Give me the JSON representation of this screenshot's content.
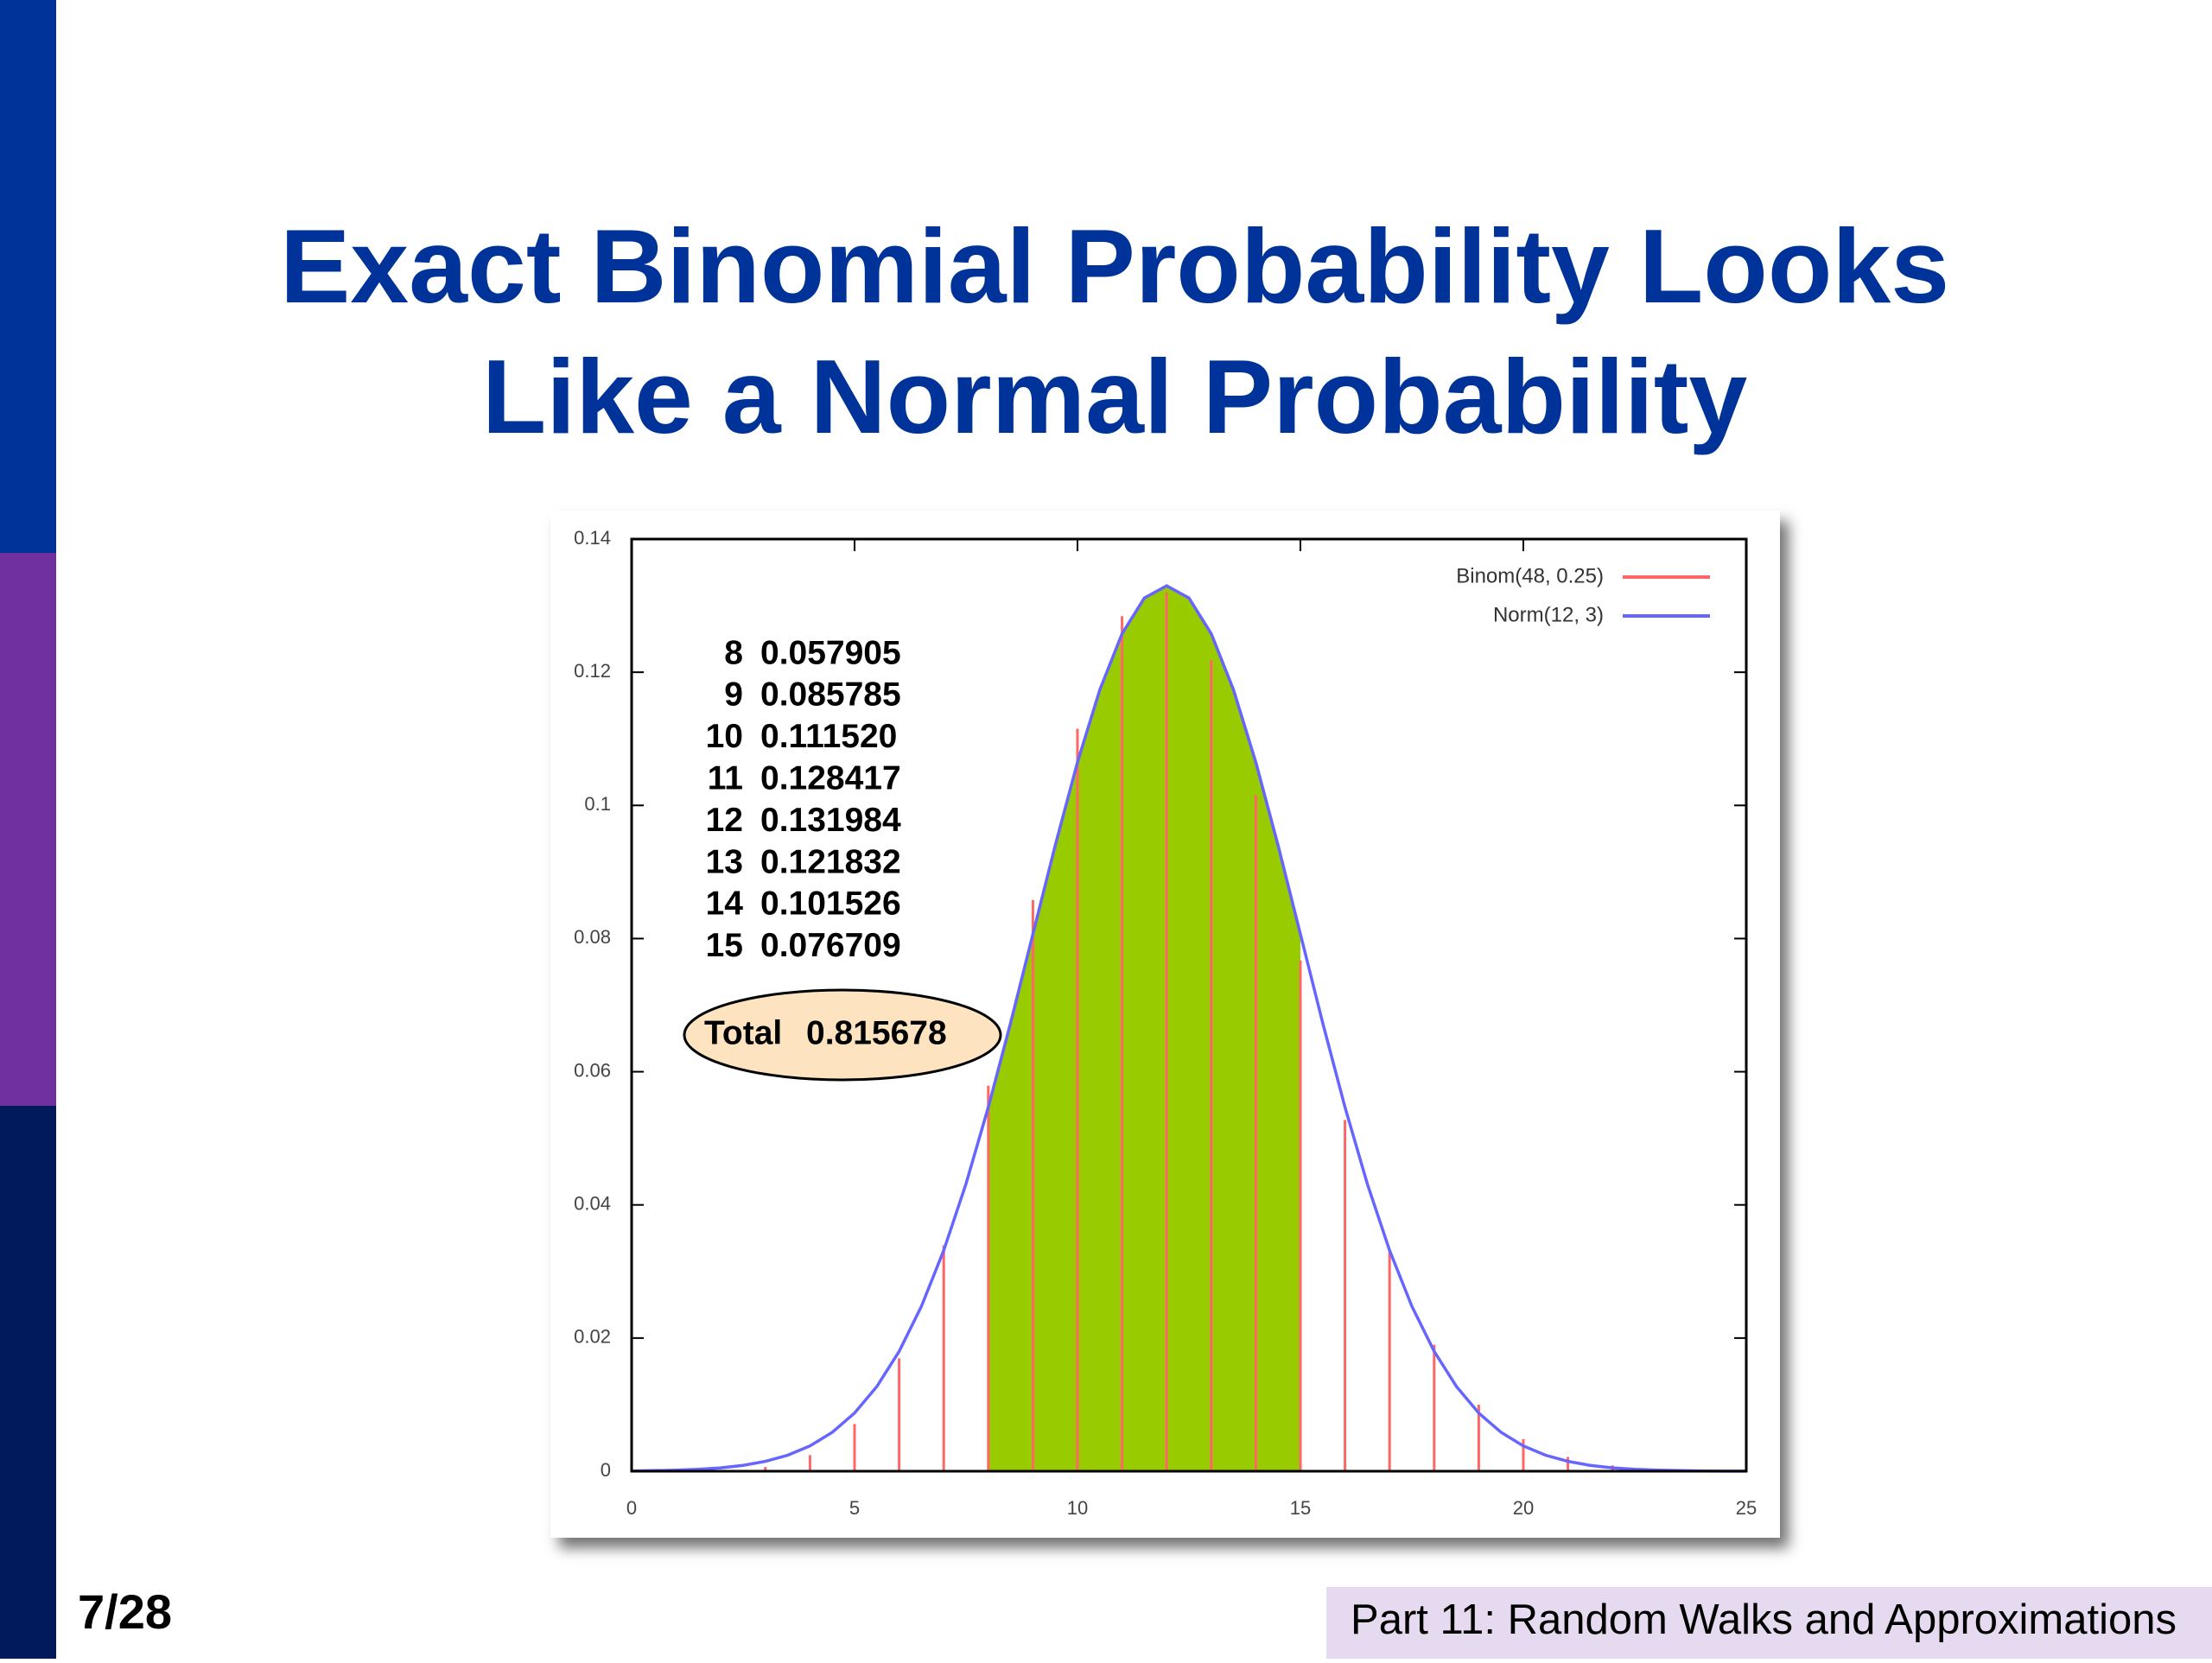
{
  "slide": {
    "page": "7/28",
    "footer": "Part 11: Random Walks and Approximations"
  },
  "chart_data": {
    "type": "stem-curve",
    "title": [
      "Exact Binomial Probability Looks",
      "Like a Normal Probability"
    ],
    "xlim": [
      0,
      25
    ],
    "xticks": [
      0,
      5,
      10,
      15,
      20,
      25
    ],
    "ylim": [
      0,
      0.14
    ],
    "yticks": [
      0,
      0.02,
      0.04,
      0.06,
      0.08,
      0.1,
      0.12,
      0.14
    ],
    "legend": "top-right",
    "shade_range": [
      8,
      15
    ],
    "shade_color": "#99cc00",
    "series": [
      {
        "name": "Binom(48, 0.25)",
        "color": "#ff6666",
        "kind": "stem",
        "x": [
          0,
          1,
          2,
          3,
          4,
          5,
          6,
          7,
          8,
          9,
          10,
          11,
          12,
          13,
          14,
          15,
          16,
          17,
          18,
          19,
          20,
          21,
          22,
          23,
          24,
          25
        ],
        "values": [
          1e-06,
          1.6e-05,
          0.000126,
          0.000645,
          0.002419,
          0.007095,
          0.016948,
          0.033896,
          0.057905,
          0.085785,
          0.11152,
          0.128417,
          0.131984,
          0.121832,
          0.101526,
          0.076709,
          0.052737,
          0.03309,
          0.018996,
          0.009998,
          0.004832,
          0.002148,
          0.000879,
          0.000331,
          0.000115,
          3.7e-05
        ]
      },
      {
        "name": "Norm(12, 3)",
        "color": "#6666ff",
        "kind": "line",
        "x": [
          0,
          0.5,
          1,
          1.5,
          2,
          2.5,
          3,
          3.5,
          4,
          4.5,
          5,
          5.5,
          6,
          6.5,
          7,
          7.5,
          8,
          8.5,
          9,
          9.5,
          10,
          10.5,
          11,
          11.5,
          12,
          12.5,
          13,
          13.5,
          14,
          14.5,
          15,
          15.5,
          16,
          16.5,
          17,
          17.5,
          18,
          18.5,
          19,
          19.5,
          20,
          20.5,
          21,
          21.5,
          22,
          22.5,
          23,
          23.5,
          24,
          24.5,
          25
        ],
        "values": [
          4e-05,
          9e-05,
          0.00016,
          0.00029,
          0.00051,
          0.00088,
          0.00148,
          0.0024,
          0.0038,
          0.00584,
          0.00874,
          0.01272,
          0.018,
          0.02477,
          0.03316,
          0.04317,
          0.05467,
          0.06733,
          0.08066,
          0.09397,
          0.10648,
          0.11735,
          0.12579,
          0.13115,
          0.13298,
          0.13115,
          0.12579,
          0.11735,
          0.10648,
          0.09397,
          0.08066,
          0.06733,
          0.05467,
          0.04317,
          0.03316,
          0.02477,
          0.018,
          0.01272,
          0.00874,
          0.00584,
          0.0038,
          0.0024,
          0.00148,
          0.00088,
          0.00051,
          0.00029,
          0.00016,
          9e-05,
          4e-05,
          2e-05,
          1e-05
        ]
      }
    ],
    "table": [
      [
        "8",
        "0.057905"
      ],
      [
        "9",
        "0.085785"
      ],
      [
        "10",
        "0.111520"
      ],
      [
        "11",
        "0.128417"
      ],
      [
        "12",
        "0.131984"
      ],
      [
        "13",
        "0.121832"
      ],
      [
        "14",
        "0.101526"
      ],
      [
        "15",
        "0.076709"
      ]
    ],
    "total": {
      "label": "Total",
      "value": "0.815678"
    }
  }
}
